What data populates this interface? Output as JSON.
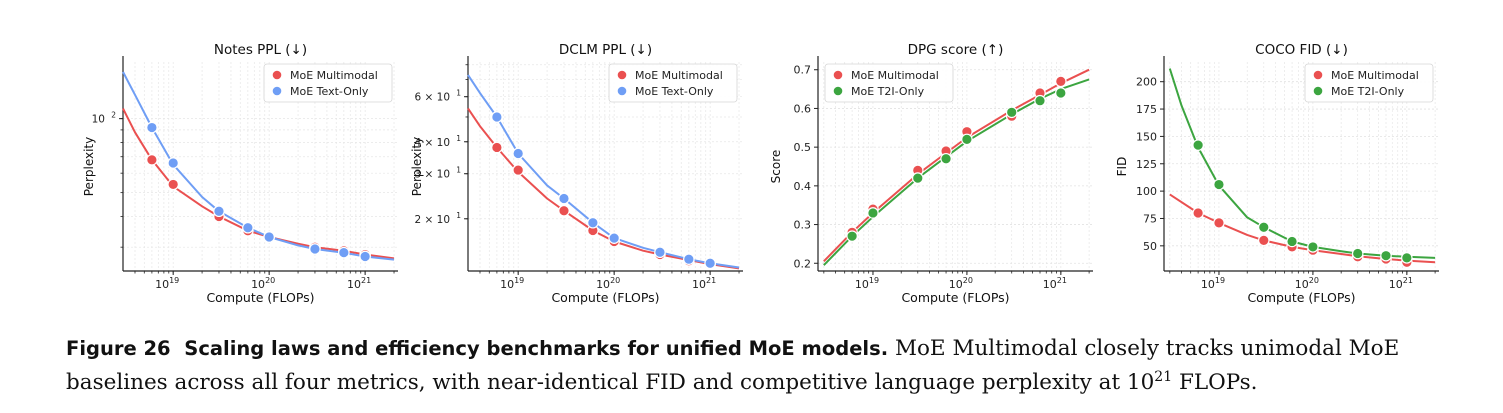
{
  "caption": {
    "label": "Figure 26",
    "bold": "Scaling laws and efficiency benchmarks for unified MoE models.",
    "text_before_exp": " MoE Multimodal closely tracks unimodal MoE baselines across all four metrics, with near-identical FID and competitive language perplexity at 10",
    "exp": "21",
    "text_after_exp": " FLOPs."
  },
  "colors": {
    "red": "#ea5050",
    "blue": "#6f9ef5",
    "green": "#3ca540"
  },
  "chart_data": [
    {
      "type": "scatter",
      "title": "Notes PPL (↓)",
      "xlabel": "Compute (FLOPs)",
      "ylabel": "Perplexity",
      "xscale": "log",
      "yscale": "log",
      "xlim": [
        3e+18,
        2.2e+21
      ],
      "ylim": [
        24,
        170
      ],
      "yticks": [
        {
          "value": 100,
          "base": "10",
          "exp": "2"
        }
      ],
      "xticks": [
        {
          "value": 1e+19,
          "base": "10",
          "exp": "19"
        },
        {
          "value": 1e+20,
          "base": "10",
          "exp": "20"
        },
        {
          "value": 1e+21,
          "base": "10",
          "exp": "21"
        }
      ],
      "legend": "top-right",
      "series": [
        {
          "name": "MoE Multimodal",
          "color": "#ea5050",
          "x": [
            6e+18,
            1e+19,
            3e+19,
            6e+19,
            1e+20,
            3e+20,
            6e+20,
            1e+21
          ],
          "y": [
            68,
            54,
            40,
            35,
            33,
            30,
            29,
            28
          ],
          "curve_x": [
            3e+18,
            4e+18,
            6e+18,
            1e+19,
            2e+19,
            3e+19,
            6e+19,
            1e+20,
            2e+20,
            3e+20,
            6e+20,
            1e+21,
            2e+21
          ],
          "curve_y": [
            110,
            88,
            68,
            53,
            44,
            40,
            35,
            33,
            31,
            30,
            29,
            28,
            27
          ]
        },
        {
          "name": "MoE Text-Only",
          "color": "#6f9ef5",
          "x": [
            6e+18,
            1e+19,
            3e+19,
            6e+19,
            1e+20,
            3e+20,
            6e+20,
            1e+21
          ],
          "y": [
            92,
            66,
            42,
            36,
            33,
            29.5,
            28.5,
            27.5
          ],
          "curve_x": [
            3e+18,
            4e+18,
            6e+18,
            1e+19,
            2e+19,
            3e+19,
            6e+19,
            1e+20,
            2e+20,
            3e+20,
            6e+20,
            1e+21,
            2e+21
          ],
          "curve_y": [
            155,
            125,
            92,
            65,
            48,
            42,
            36,
            33,
            30.5,
            29.5,
            28.5,
            27.5,
            26.7
          ]
        }
      ]
    },
    {
      "type": "scatter",
      "title": "DCLM PPL (↓)",
      "xlabel": "Compute (FLOPs)",
      "ylabel": "Perplexity",
      "xscale": "log",
      "yscale": "log",
      "xlim": [
        3e+18,
        2.2e+21
      ],
      "ylim": [
        12.5,
        82
      ],
      "yticks": [
        {
          "value": 20,
          "base": "2 × 10",
          "exp": "1"
        },
        {
          "value": 30,
          "base": "3 × 10",
          "exp": "1"
        },
        {
          "value": 40,
          "base": "4 × 10",
          "exp": "1"
        },
        {
          "value": 60,
          "base": "6 × 10",
          "exp": "1"
        }
      ],
      "xticks": [
        {
          "value": 1e+19,
          "base": "10",
          "exp": "19"
        },
        {
          "value": 1e+20,
          "base": "10",
          "exp": "20"
        },
        {
          "value": 1e+21,
          "base": "10",
          "exp": "21"
        }
      ],
      "legend": "top-right",
      "series": [
        {
          "name": "MoE Multimodal",
          "color": "#ea5050",
          "x": [
            6e+18,
            1e+19,
            3e+19,
            6e+19,
            1e+20,
            3e+20,
            6e+20,
            1e+21
          ],
          "y": [
            38,
            31,
            21.5,
            18,
            16.3,
            14.5,
            13.7,
            13.3
          ],
          "curve_x": [
            3e+18,
            4e+18,
            6e+18,
            1e+19,
            2e+19,
            3e+19,
            6e+19,
            1e+20,
            2e+20,
            3e+20,
            6e+20,
            1e+21,
            2e+21
          ],
          "curve_y": [
            54,
            46,
            38,
            30.5,
            24,
            21.5,
            18,
            16.3,
            15.0,
            14.5,
            13.8,
            13.3,
            12.8
          ]
        },
        {
          "name": "MoE Text-Only",
          "color": "#6f9ef5",
          "x": [
            6e+18,
            1e+19,
            3e+19,
            6e+19,
            1e+20,
            3e+20,
            6e+20,
            1e+21
          ],
          "y": [
            50,
            36,
            24,
            19.3,
            16.8,
            14.8,
            13.9,
            13.4
          ],
          "curve_x": [
            3e+18,
            4e+18,
            6e+18,
            1e+19,
            2e+19,
            3e+19,
            6e+19,
            1e+20,
            2e+20,
            3e+20,
            6e+20,
            1e+21,
            2e+21
          ],
          "curve_y": [
            73,
            62,
            50,
            36,
            27,
            24,
            19.3,
            16.8,
            15.4,
            14.8,
            13.9,
            13.4,
            12.9
          ]
        }
      ]
    },
    {
      "type": "scatter",
      "title": "DPG score (↑)",
      "xlabel": "Compute (FLOPs)",
      "ylabel": "Score",
      "xscale": "log",
      "yscale": "linear",
      "xlim": [
        2.6e+18,
        2.2e+21
      ],
      "ylim": [
        0.18,
        0.72
      ],
      "yticks": [
        {
          "value": 0.2,
          "label": "0.2"
        },
        {
          "value": 0.3,
          "label": "0.3"
        },
        {
          "value": 0.4,
          "label": "0.4"
        },
        {
          "value": 0.5,
          "label": "0.5"
        },
        {
          "value": 0.6,
          "label": "0.6"
        },
        {
          "value": 0.7,
          "label": "0.7"
        }
      ],
      "xticks": [
        {
          "value": 1e+19,
          "base": "10",
          "exp": "19"
        },
        {
          "value": 1e+20,
          "base": "10",
          "exp": "20"
        },
        {
          "value": 1e+21,
          "base": "10",
          "exp": "21"
        }
      ],
      "legend": "top-left",
      "series": [
        {
          "name": "MoE Multimodal",
          "color": "#ea5050",
          "x": [
            6e+18,
            1e+19,
            3e+19,
            6e+19,
            1e+20,
            3e+20,
            6e+20,
            1e+21
          ],
          "y": [
            0.28,
            0.34,
            0.44,
            0.49,
            0.54,
            0.58,
            0.64,
            0.67
          ],
          "curve_x": [
            3e+18,
            6e+18,
            1e+19,
            3e+19,
            6e+19,
            1e+20,
            3e+20,
            6e+20,
            1e+21,
            2e+21
          ],
          "curve_y": [
            0.205,
            0.28,
            0.33,
            0.43,
            0.485,
            0.525,
            0.595,
            0.635,
            0.665,
            0.7
          ]
        },
        {
          "name": "MoE T2I-Only",
          "color": "#3ca540",
          "x": [
            6e+18,
            1e+19,
            3e+19,
            6e+19,
            1e+20,
            3e+20,
            6e+20,
            1e+21
          ],
          "y": [
            0.27,
            0.33,
            0.42,
            0.47,
            0.52,
            0.59,
            0.62,
            0.64
          ],
          "curve_x": [
            3e+18,
            6e+18,
            1e+19,
            3e+19,
            6e+19,
            1e+20,
            3e+20,
            6e+20,
            1e+21,
            2e+21
          ],
          "curve_y": [
            0.195,
            0.27,
            0.32,
            0.42,
            0.475,
            0.515,
            0.585,
            0.625,
            0.65,
            0.675
          ]
        }
      ]
    },
    {
      "type": "scatter",
      "title": "COCO FID (↓)",
      "xlabel": "Compute (FLOPs)",
      "ylabel": "FID",
      "xscale": "log",
      "yscale": "linear",
      "xlim": [
        2.6e+18,
        2.2e+21
      ],
      "ylim": [
        27,
        218
      ],
      "yticks": [
        {
          "value": 50,
          "label": "50"
        },
        {
          "value": 75,
          "label": "75"
        },
        {
          "value": 100,
          "label": "100"
        },
        {
          "value": 125,
          "label": "125"
        },
        {
          "value": 150,
          "label": "150"
        },
        {
          "value": 175,
          "label": "175"
        },
        {
          "value": 200,
          "label": "200"
        }
      ],
      "xticks": [
        {
          "value": 1e+19,
          "base": "10",
          "exp": "19"
        },
        {
          "value": 1e+20,
          "base": "10",
          "exp": "20"
        },
        {
          "value": 1e+21,
          "base": "10",
          "exp": "21"
        }
      ],
      "legend": "top-right",
      "series": [
        {
          "name": "MoE Multimodal",
          "color": "#ea5050",
          "x": [
            6e+18,
            1e+19,
            3e+19,
            6e+19,
            1e+20,
            3e+20,
            6e+20,
            1e+21
          ],
          "y": [
            80,
            71,
            55,
            49,
            46,
            40,
            38,
            35
          ],
          "curve_x": [
            3e+18,
            6e+18,
            1e+19,
            2e+19,
            3e+19,
            6e+19,
            1e+20,
            2e+20,
            3e+20,
            6e+20,
            1e+21,
            2e+21
          ],
          "curve_y": [
            97,
            80,
            71,
            60,
            55,
            49,
            46,
            42.5,
            40.5,
            38,
            36.5,
            35
          ]
        },
        {
          "name": "MoE T2I-Only",
          "color": "#3ca540",
          "x": [
            6e+18,
            1e+19,
            3e+19,
            6e+19,
            1e+20,
            3e+20,
            6e+20,
            1e+21
          ],
          "y": [
            142,
            106,
            67,
            54,
            49,
            43,
            41,
            39
          ],
          "curve_x": [
            3e+18,
            4e+18,
            6e+18,
            1e+19,
            2e+19,
            3e+19,
            6e+19,
            1e+20,
            2e+20,
            3e+20,
            6e+20,
            1e+21,
            2e+21
          ],
          "curve_y": [
            212,
            178,
            140,
            105,
            76,
            67,
            54,
            49,
            45,
            43,
            41,
            40,
            39
          ]
        }
      ]
    }
  ]
}
